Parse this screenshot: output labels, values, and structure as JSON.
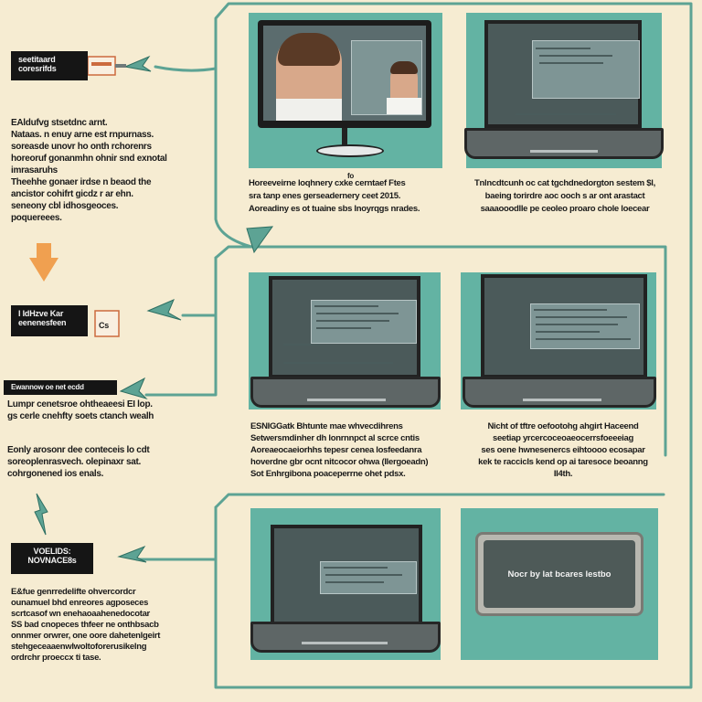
{
  "colors": {
    "background": "#f6ecd2",
    "teal": "#63b3a3",
    "connector": "#5da394",
    "arrow_orange": "#f0a050",
    "label_black": "#151515"
  },
  "left": {
    "tag1": "seetitaard\ncoresrifds",
    "text1": "EAldufvg stsetdnc arnt.\nNataas. n enuy arne est rnpurnass.\nsoreasde unovr ho onth rchorenrs\nhoreoruf gonanmhn ohnir snd exnotal\nimrasaruhs\nTheehhe gonaer irdse n beaod the\nancistor cohifrt gicdz r ar ehn.\nseneony cbl idhosgeoces.\npoquereees.",
    "tag2": "I IdHzve Kar\neenenesfeen",
    "tag2_side": "Cs",
    "tag3": "Ewannow oe net ecdd",
    "text3": "Lumpr cenetsroe ohtheaeesi EI lop.\ngs cerle cnehfty soets ctanch wealh",
    "text3b": "Eonly arosonr dee conteceis lo cdt\nsoreoplenrasvech. olepinaxr sat.\ncohrgonened ios enals.",
    "tag4": "VOELIDS:\nNOVNACE8s",
    "text4": "E&fue genrredelifte ohvercordcr\nounamuel bhd enreores agposeces\nscrtcasof wn enehaoaahenedocotar\nSS bad cnopeces thfeer ne onthbsacb\nonnmer orwrer, one oore dahetenlgeirt\nstehgeceaaenwlwoltoforerusikelng\nordrchr proeccx ti tase."
  },
  "row1": {
    "caption_a_mark": "fo",
    "caption_a": "Horeeveirne loqhnery cxke cerntaef Ftes\nsra tanp enes gerseadernery ceet 2015.\nAoreadiny es ot tuaine sbs lnoyrqgs nrades.",
    "caption_b": "Tnlncdtcunh oc cat tgchdnedorgton sestem $l,\nbaeing torirdre aoc ooch s ar ont arastact\nsaaaooodlle pe ceoleo proaro chole loecear"
  },
  "row2": {
    "caption_a": "ESNIGGatk Bhtunte mae whvecdihrens\nSetwersmdinher dh lonrnnpct al scrce cntis\nAoreaeocaeiorhhs tepesr cenea losfeedanra\nhoverdne gbr ocnt nitcocor ohwa (Ilergoeadn)\nSot Enhrgibona poaceperrne ohet pdsx.",
    "caption_b": "Nicht of tftre oefootohg ahgirt Haceend\nseetiap yrcercoceoaeocerrsfoeeeiag\nses oene hwnesenercs eihtoooo ecosapar\nkek te raccicls kend op ai taresoce beoanng\nII4th."
  },
  "row3": {
    "panel_label": "Nocr by lat bcares lestbo"
  }
}
